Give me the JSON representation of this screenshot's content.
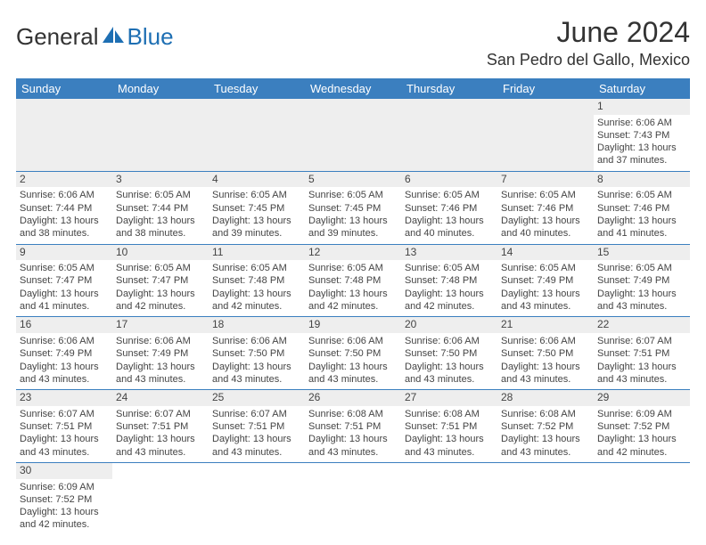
{
  "logo": {
    "text1": "General",
    "text2": "Blue",
    "brandColor": "#1e6fb3"
  },
  "header": {
    "title": "June 2024",
    "location": "San Pedro del Gallo, Mexico"
  },
  "colors": {
    "headerBg": "#3b7fbf",
    "headerFg": "#ffffff",
    "stripe": "#eeeeee",
    "border": "#3b7fbf"
  },
  "weekdays": [
    "Sunday",
    "Monday",
    "Tuesday",
    "Wednesday",
    "Thursday",
    "Friday",
    "Saturday"
  ],
  "days": {
    "1": {
      "sunrise": "Sunrise: 6:06 AM",
      "sunset": "Sunset: 7:43 PM",
      "day1": "Daylight: 13 hours",
      "day2": "and 37 minutes."
    },
    "2": {
      "sunrise": "Sunrise: 6:06 AM",
      "sunset": "Sunset: 7:44 PM",
      "day1": "Daylight: 13 hours",
      "day2": "and 38 minutes."
    },
    "3": {
      "sunrise": "Sunrise: 6:05 AM",
      "sunset": "Sunset: 7:44 PM",
      "day1": "Daylight: 13 hours",
      "day2": "and 38 minutes."
    },
    "4": {
      "sunrise": "Sunrise: 6:05 AM",
      "sunset": "Sunset: 7:45 PM",
      "day1": "Daylight: 13 hours",
      "day2": "and 39 minutes."
    },
    "5": {
      "sunrise": "Sunrise: 6:05 AM",
      "sunset": "Sunset: 7:45 PM",
      "day1": "Daylight: 13 hours",
      "day2": "and 39 minutes."
    },
    "6": {
      "sunrise": "Sunrise: 6:05 AM",
      "sunset": "Sunset: 7:46 PM",
      "day1": "Daylight: 13 hours",
      "day2": "and 40 minutes."
    },
    "7": {
      "sunrise": "Sunrise: 6:05 AM",
      "sunset": "Sunset: 7:46 PM",
      "day1": "Daylight: 13 hours",
      "day2": "and 40 minutes."
    },
    "8": {
      "sunrise": "Sunrise: 6:05 AM",
      "sunset": "Sunset: 7:46 PM",
      "day1": "Daylight: 13 hours",
      "day2": "and 41 minutes."
    },
    "9": {
      "sunrise": "Sunrise: 6:05 AM",
      "sunset": "Sunset: 7:47 PM",
      "day1": "Daylight: 13 hours",
      "day2": "and 41 minutes."
    },
    "10": {
      "sunrise": "Sunrise: 6:05 AM",
      "sunset": "Sunset: 7:47 PM",
      "day1": "Daylight: 13 hours",
      "day2": "and 42 minutes."
    },
    "11": {
      "sunrise": "Sunrise: 6:05 AM",
      "sunset": "Sunset: 7:48 PM",
      "day1": "Daylight: 13 hours",
      "day2": "and 42 minutes."
    },
    "12": {
      "sunrise": "Sunrise: 6:05 AM",
      "sunset": "Sunset: 7:48 PM",
      "day1": "Daylight: 13 hours",
      "day2": "and 42 minutes."
    },
    "13": {
      "sunrise": "Sunrise: 6:05 AM",
      "sunset": "Sunset: 7:48 PM",
      "day1": "Daylight: 13 hours",
      "day2": "and 42 minutes."
    },
    "14": {
      "sunrise": "Sunrise: 6:05 AM",
      "sunset": "Sunset: 7:49 PM",
      "day1": "Daylight: 13 hours",
      "day2": "and 43 minutes."
    },
    "15": {
      "sunrise": "Sunrise: 6:05 AM",
      "sunset": "Sunset: 7:49 PM",
      "day1": "Daylight: 13 hours",
      "day2": "and 43 minutes."
    },
    "16": {
      "sunrise": "Sunrise: 6:06 AM",
      "sunset": "Sunset: 7:49 PM",
      "day1": "Daylight: 13 hours",
      "day2": "and 43 minutes."
    },
    "17": {
      "sunrise": "Sunrise: 6:06 AM",
      "sunset": "Sunset: 7:49 PM",
      "day1": "Daylight: 13 hours",
      "day2": "and 43 minutes."
    },
    "18": {
      "sunrise": "Sunrise: 6:06 AM",
      "sunset": "Sunset: 7:50 PM",
      "day1": "Daylight: 13 hours",
      "day2": "and 43 minutes."
    },
    "19": {
      "sunrise": "Sunrise: 6:06 AM",
      "sunset": "Sunset: 7:50 PM",
      "day1": "Daylight: 13 hours",
      "day2": "and 43 minutes."
    },
    "20": {
      "sunrise": "Sunrise: 6:06 AM",
      "sunset": "Sunset: 7:50 PM",
      "day1": "Daylight: 13 hours",
      "day2": "and 43 minutes."
    },
    "21": {
      "sunrise": "Sunrise: 6:06 AM",
      "sunset": "Sunset: 7:50 PM",
      "day1": "Daylight: 13 hours",
      "day2": "and 43 minutes."
    },
    "22": {
      "sunrise": "Sunrise: 6:07 AM",
      "sunset": "Sunset: 7:51 PM",
      "day1": "Daylight: 13 hours",
      "day2": "and 43 minutes."
    },
    "23": {
      "sunrise": "Sunrise: 6:07 AM",
      "sunset": "Sunset: 7:51 PM",
      "day1": "Daylight: 13 hours",
      "day2": "and 43 minutes."
    },
    "24": {
      "sunrise": "Sunrise: 6:07 AM",
      "sunset": "Sunset: 7:51 PM",
      "day1": "Daylight: 13 hours",
      "day2": "and 43 minutes."
    },
    "25": {
      "sunrise": "Sunrise: 6:07 AM",
      "sunset": "Sunset: 7:51 PM",
      "day1": "Daylight: 13 hours",
      "day2": "and 43 minutes."
    },
    "26": {
      "sunrise": "Sunrise: 6:08 AM",
      "sunset": "Sunset: 7:51 PM",
      "day1": "Daylight: 13 hours",
      "day2": "and 43 minutes."
    },
    "27": {
      "sunrise": "Sunrise: 6:08 AM",
      "sunset": "Sunset: 7:51 PM",
      "day1": "Daylight: 13 hours",
      "day2": "and 43 minutes."
    },
    "28": {
      "sunrise": "Sunrise: 6:08 AM",
      "sunset": "Sunset: 7:52 PM",
      "day1": "Daylight: 13 hours",
      "day2": "and 43 minutes."
    },
    "29": {
      "sunrise": "Sunrise: 6:09 AM",
      "sunset": "Sunset: 7:52 PM",
      "day1": "Daylight: 13 hours",
      "day2": "and 42 minutes."
    },
    "30": {
      "sunrise": "Sunrise: 6:09 AM",
      "sunset": "Sunset: 7:52 PM",
      "day1": "Daylight: 13 hours",
      "day2": "and 42 minutes."
    }
  },
  "layout": [
    [
      null,
      null,
      null,
      null,
      null,
      null,
      "1"
    ],
    [
      "2",
      "3",
      "4",
      "5",
      "6",
      "7",
      "8"
    ],
    [
      "9",
      "10",
      "11",
      "12",
      "13",
      "14",
      "15"
    ],
    [
      "16",
      "17",
      "18",
      "19",
      "20",
      "21",
      "22"
    ],
    [
      "23",
      "24",
      "25",
      "26",
      "27",
      "28",
      "29"
    ],
    [
      "30",
      null,
      null,
      null,
      null,
      null,
      null
    ]
  ]
}
